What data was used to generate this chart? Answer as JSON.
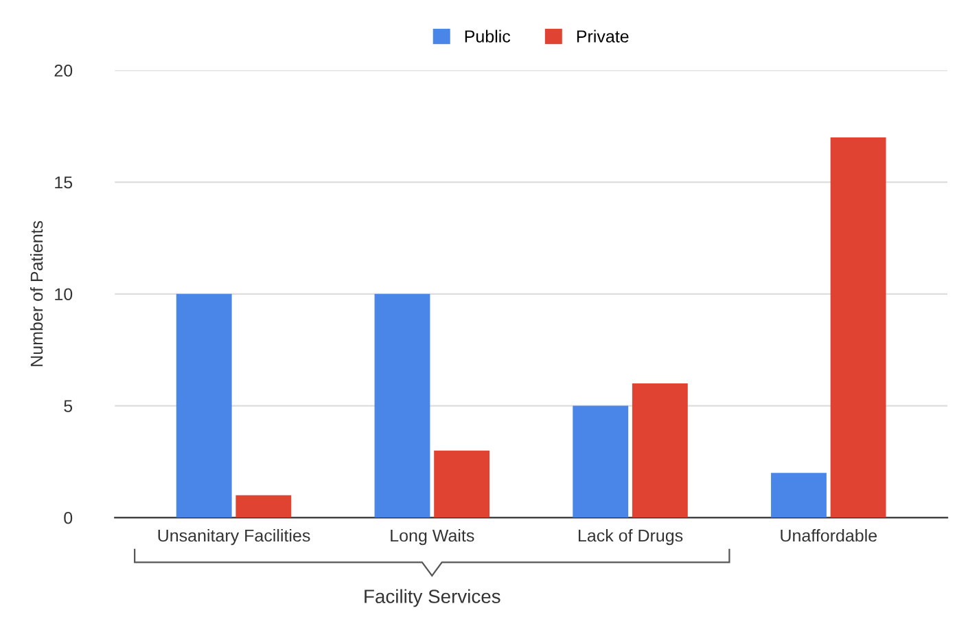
{
  "chart_data": {
    "type": "bar",
    "ylabel": "Number of Patients",
    "categories": [
      "Unsanitary Facilities",
      "Long Waits",
      "Lack of Drugs",
      "Unaffordable"
    ],
    "series": [
      {
        "name": "Public",
        "color": "#4a86e8",
        "values": [
          10,
          10,
          5,
          2
        ]
      },
      {
        "name": "Private",
        "color": "#e04331",
        "values": [
          1,
          3,
          6,
          17
        ]
      }
    ],
    "ylim": [
      0,
      20
    ],
    "yticks": [
      0,
      5,
      10,
      15,
      20
    ],
    "grid": "y",
    "legend": "top",
    "annotations": [
      "Facility Services"
    ]
  }
}
